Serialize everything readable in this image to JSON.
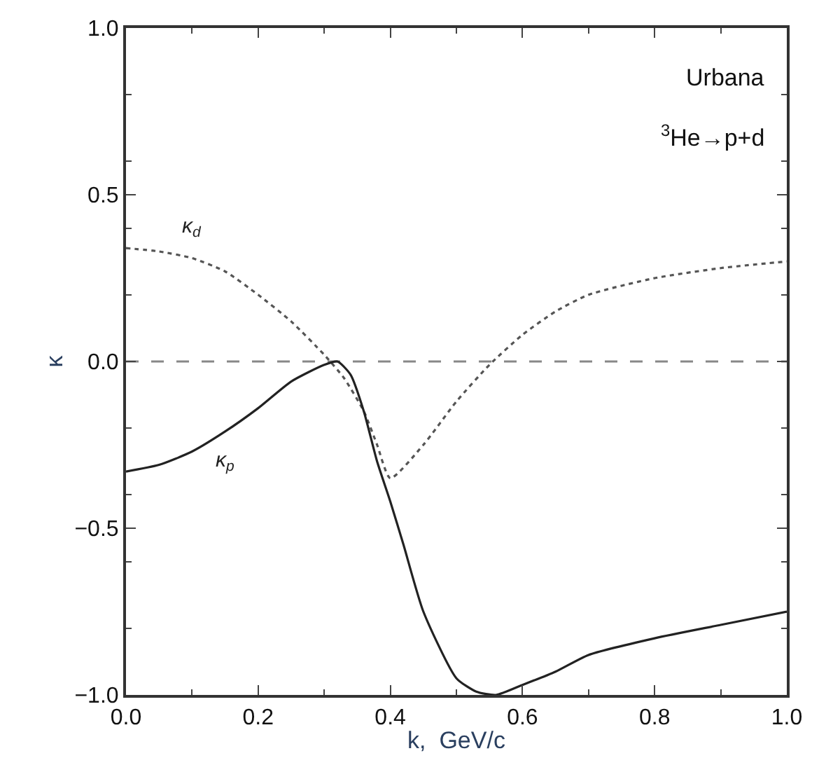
{
  "chart_data": {
    "type": "line",
    "xlabel": "k,  GeV/c",
    "ylabel": "κ",
    "xlim": [
      0.0,
      1.0
    ],
    "ylim": [
      -1.0,
      1.0
    ],
    "xticks": [
      {
        "value": 0,
        "label": "0.0"
      },
      0.2,
      0.4,
      0.6,
      0.8,
      {
        "value": 1,
        "label": "1.0"
      }
    ],
    "yticks": [
      {
        "value": -1,
        "label": "−1.0"
      },
      {
        "value": -0.5,
        "label": "−0.5"
      },
      {
        "value": 0,
        "label": "0.0"
      },
      0.5,
      {
        "value": 1,
        "label": "1.0"
      }
    ],
    "grid": false,
    "legend": false,
    "marker": "none",
    "annotations": [
      "Urbana",
      "$^{3}$He→p+d"
    ],
    "ref_lines": [
      {
        "axis": "y",
        "value": 0,
        "color": "#888888",
        "line_style": "dashed"
      }
    ],
    "series": [
      {
        "name": "κ$_{d}$",
        "color": "#555555",
        "line_style": "dotted",
        "x": [
          0,
          0.05,
          0.1,
          0.15,
          0.2,
          0.25,
          0.3,
          0.33,
          0.36,
          0.38,
          0.4,
          0.45,
          0.5,
          0.55,
          0.6,
          0.65,
          0.7,
          0.8,
          0.9,
          1.0
        ],
        "values": [
          0.34,
          0.33,
          0.31,
          0.27,
          0.2,
          0.12,
          0.02,
          -0.05,
          -0.15,
          -0.25,
          -0.35,
          -0.25,
          -0.12,
          -0.01,
          0.08,
          0.15,
          0.2,
          0.25,
          0.28,
          0.3
        ]
      },
      {
        "name": "κ$_{p}$",
        "color": "#222222",
        "line_style": "solid",
        "x": [
          0,
          0.05,
          0.1,
          0.15,
          0.2,
          0.25,
          0.3,
          0.32,
          0.34,
          0.36,
          0.38,
          0.4,
          0.42,
          0.45,
          0.5,
          0.53,
          0.56,
          0.6,
          0.65,
          0.7,
          0.8,
          0.9,
          1.0
        ],
        "values": [
          -0.33,
          -0.31,
          -0.27,
          -0.21,
          -0.14,
          -0.06,
          -0.01,
          0.0,
          -0.04,
          -0.15,
          -0.3,
          -0.42,
          -0.55,
          -0.75,
          -0.95,
          -0.99,
          -1.0,
          -0.97,
          -0.93,
          -0.88,
          -0.83,
          -0.79,
          -0.75
        ]
      }
    ]
  }
}
